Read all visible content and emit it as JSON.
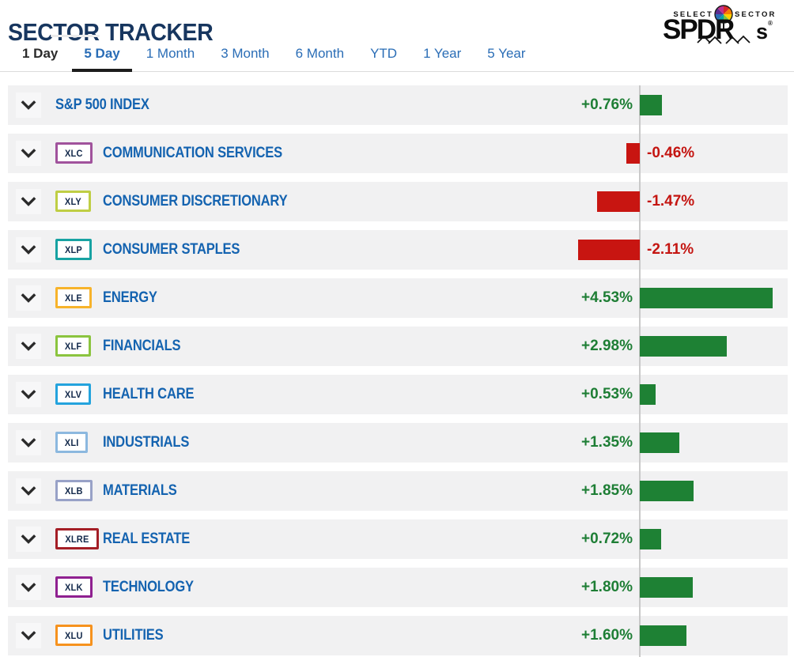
{
  "header": {
    "title": "SECTOR TRACKER"
  },
  "logo": {
    "select": "SELECT",
    "sector": "SECTOR",
    "spdr": "SPDR",
    "s": "s",
    "reg": "®",
    "pinwheel_colors": [
      "#d62828",
      "#f77f00",
      "#ffd000",
      "#7ac142",
      "#00a6a6",
      "#2a6db6",
      "#5b2d90",
      "#c0308f"
    ]
  },
  "tabs": [
    {
      "label": "1 Day",
      "active": false,
      "color": "#2b2b2b"
    },
    {
      "label": "5 Day",
      "active": true,
      "color": "#2a6db6"
    },
    {
      "label": "1 Month",
      "active": false,
      "color": "#2a6db6"
    },
    {
      "label": "3 Month",
      "active": false,
      "color": "#2a6db6"
    },
    {
      "label": "6 Month",
      "active": false,
      "color": "#2a6db6"
    },
    {
      "label": "YTD",
      "active": false,
      "color": "#2a6db6"
    },
    {
      "label": "1 Year",
      "active": false,
      "color": "#2a6db6"
    },
    {
      "label": "5 Year",
      "active": false,
      "color": "#2a6db6"
    }
  ],
  "colors": {
    "title_navy": "#17365f",
    "sector_name_blue": "#1463b0",
    "positive_bar": "#1e8134",
    "negative_bar": "#c81511",
    "positive_text": "#1e7e35",
    "negative_text": "#c41511",
    "row_background": "#f1f1f2",
    "center_line": "#c9c9c9",
    "active_tab_underline": "#1d1d1d"
  },
  "rows": [
    {
      "ticker": null,
      "name": "S&P 500 INDEX",
      "change": "+0.76%",
      "value": 0.76,
      "badge_color": null
    },
    {
      "ticker": "XLC",
      "name": "COMMUNICATION SERVICES",
      "change": "-0.46%",
      "value": -0.46,
      "badge_color": "#a0529c"
    },
    {
      "ticker": "XLY",
      "name": "CONSUMER DISCRETIONARY",
      "change": "-1.47%",
      "value": -1.47,
      "badge_color": "#bfce44"
    },
    {
      "ticker": "XLP",
      "name": "CONSUMER STAPLES",
      "change": "-2.11%",
      "value": -2.11,
      "badge_color": "#17a2a2"
    },
    {
      "ticker": "XLE",
      "name": "ENERGY",
      "change": "+4.53%",
      "value": 4.53,
      "badge_color": "#f7b32b"
    },
    {
      "ticker": "XLF",
      "name": "FINANCIALS",
      "change": "+2.98%",
      "value": 2.98,
      "badge_color": "#8bc43f"
    },
    {
      "ticker": "XLV",
      "name": "HEALTH CARE",
      "change": "+0.53%",
      "value": 0.53,
      "badge_color": "#24a3dd"
    },
    {
      "ticker": "XLI",
      "name": "INDUSTRIALS",
      "change": "+1.35%",
      "value": 1.35,
      "badge_color": "#8cb8df"
    },
    {
      "ticker": "XLB",
      "name": "MATERIALS",
      "change": "+1.85%",
      "value": 1.85,
      "badge_color": "#98a1c7"
    },
    {
      "ticker": "XLRE",
      "name": "REAL ESTATE",
      "change": "+0.72%",
      "value": 0.72,
      "badge_color": "#a41e26"
    },
    {
      "ticker": "XLK",
      "name": "TECHNOLOGY",
      "change": "+1.80%",
      "value": 1.8,
      "badge_color": "#8f2090"
    },
    {
      "ticker": "XLU",
      "name": "UTILITIES",
      "change": "+1.60%",
      "value": 1.6,
      "badge_color": "#f6921e"
    }
  ],
  "chart_data": {
    "type": "bar",
    "orientation": "horizontal",
    "title": "SECTOR TRACKER",
    "period": "5 Day",
    "unit": "%",
    "categories": [
      "S&P 500 INDEX",
      "COMMUNICATION SERVICES",
      "CONSUMER DISCRETIONARY",
      "CONSUMER STAPLES",
      "ENERGY",
      "FINANCIALS",
      "HEALTH CARE",
      "INDUSTRIALS",
      "MATERIALS",
      "REAL ESTATE",
      "TECHNOLOGY",
      "UTILITIES"
    ],
    "tickers": [
      null,
      "XLC",
      "XLY",
      "XLP",
      "XLE",
      "XLF",
      "XLV",
      "XLI",
      "XLB",
      "XLRE",
      "XLK",
      "XLU"
    ],
    "values": [
      0.76,
      -0.46,
      -1.47,
      -2.11,
      4.53,
      2.98,
      0.53,
      1.35,
      1.85,
      0.72,
      1.8,
      1.6
    ],
    "value_labels": [
      "+0.76%",
      "-0.46%",
      "-1.47%",
      "-2.11%",
      "+4.53%",
      "+2.98%",
      "+0.53%",
      "+1.35%",
      "+1.85%",
      "+0.72%",
      "+1.80%",
      "+1.60%"
    ],
    "baseline": 0,
    "positive_color": "#1e8134",
    "negative_color": "#c81511",
    "grid": false,
    "legend": false
  }
}
